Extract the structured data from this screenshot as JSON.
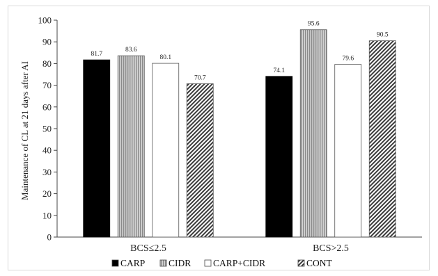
{
  "chart_data": {
    "type": "bar",
    "categories": [
      "BCS≤2.5",
      "BCS>2.5"
    ],
    "series": [
      {
        "name": "CARP",
        "values": [
          81.7,
          74.1
        ],
        "color": "#000000",
        "pattern": "solid"
      },
      {
        "name": "CIDR",
        "values": [
          83.6,
          95.6
        ],
        "color": "#b8b8b8",
        "pattern": "vertical-lines"
      },
      {
        "name": "CARP+CIDR",
        "values": [
          80.1,
          79.6
        ],
        "color": "#ffffff",
        "pattern": "solid"
      },
      {
        "name": "CONT",
        "values": [
          70.7,
          90.5
        ],
        "color": "#555555",
        "pattern": "diagonal-hatch"
      }
    ],
    "title": "",
    "xlabel": "",
    "ylabel": "Maintenance of CL  at 21 days after AI",
    "ylim": [
      0,
      100
    ],
    "yticks": [
      0,
      10,
      20,
      30,
      40,
      50,
      60,
      70,
      80,
      90,
      100
    ],
    "grid": false,
    "legend": "bottom",
    "data_labels": true
  }
}
